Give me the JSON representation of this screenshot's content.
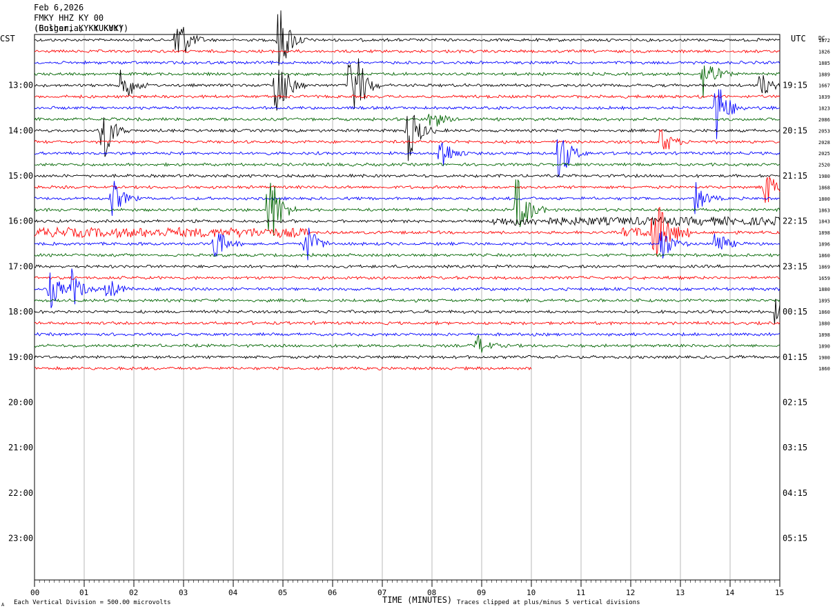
{
  "header": {
    "date": "Feb 6,2026",
    "station": "FMKY HHZ KY 00",
    "location_line_a": "(Bulgaria, KY KUKY)",
    "location_line_b": "(Goshen, KY KUKYY)"
  },
  "labels": {
    "left_tz": "CST",
    "right_tz": "UTC",
    "dc_header": "DC",
    "xlabel": "TIME (MINUTES)",
    "scale_note": "Each Vertical Division =  500.00 microvolts",
    "clip_note": "Traces clipped at plus/minus 5 vertical divisions",
    "corner_mark": "A"
  },
  "chart_data": {
    "type": "line",
    "title": "FMKY HHZ KY 00",
    "date": "Feb 6,2026",
    "xlabel": "TIME (MINUTES)",
    "x_ticks": [
      "00",
      "01",
      "02",
      "03",
      "04",
      "05",
      "06",
      "07",
      "08",
      "09",
      "10",
      "11",
      "12",
      "13",
      "14",
      "15"
    ],
    "xlim": [
      0,
      15
    ],
    "left_hour_labels": [
      "13:00",
      "14:00",
      "15:00",
      "16:00",
      "17:00",
      "18:00",
      "19:00",
      "20:00",
      "21:00",
      "22:00",
      "23:00"
    ],
    "right_hour_labels": [
      "19:15",
      "20:15",
      "21:15",
      "22:15",
      "23:15",
      "00:15",
      "01:15",
      "02:15",
      "03:15",
      "04:15",
      "05:15"
    ],
    "trace_colors": [
      "#000000",
      "#ff0000",
      "#0000ff",
      "#006400"
    ],
    "dc_offsets": [
      "1872",
      "1826",
      "1885",
      "1889",
      "1667",
      "1839",
      "1823",
      "2086",
      "2053",
      "2028",
      "2025",
      "2520",
      "1980",
      "1868",
      "1800",
      "1863",
      "1843",
      "1898",
      "1896",
      "1860",
      "1869",
      "1659",
      "1880",
      "1895",
      "1860",
      "1880",
      "1898",
      "1890",
      "1900",
      "1860"
    ],
    "trace_count": 30,
    "last_trace_end_minute": 10.0,
    "events": [
      {
        "trace": 0,
        "minute": 2.85,
        "amp": 1.6
      },
      {
        "trace": 0,
        "minute": 4.9,
        "amp": 2.0
      },
      {
        "trace": 3,
        "minute": 13.45,
        "amp": 1.2
      },
      {
        "trace": 4,
        "minute": 1.75,
        "amp": 1.0
      },
      {
        "trace": 4,
        "minute": 4.85,
        "amp": 2.0
      },
      {
        "trace": 4,
        "minute": 6.35,
        "amp": 3.2
      },
      {
        "trace": 4,
        "minute": 14.6,
        "amp": 0.6
      },
      {
        "trace": 6,
        "minute": 13.7,
        "amp": 1.8
      },
      {
        "trace": 7,
        "minute": 7.95,
        "amp": 0.6
      },
      {
        "trace": 8,
        "minute": 1.35,
        "amp": 1.6
      },
      {
        "trace": 8,
        "minute": 7.5,
        "amp": 1.6
      },
      {
        "trace": 9,
        "minute": 12.6,
        "amp": 0.7
      },
      {
        "trace": 10,
        "minute": 8.15,
        "amp": 1.0
      },
      {
        "trace": 10,
        "minute": 10.55,
        "amp": 1.4
      },
      {
        "trace": 13,
        "minute": 14.7,
        "amp": 0.9
      },
      {
        "trace": 14,
        "minute": 1.55,
        "amp": 0.9
      },
      {
        "trace": 14,
        "minute": 13.3,
        "amp": 0.7
      },
      {
        "trace": 15,
        "minute": 4.7,
        "amp": 2.5
      },
      {
        "trace": 15,
        "minute": 9.7,
        "amp": 1.8
      },
      {
        "trace": 17,
        "minute": 12.45,
        "amp": 2.0
      },
      {
        "trace": 18,
        "minute": 3.6,
        "amp": 1.0
      },
      {
        "trace": 18,
        "minute": 5.45,
        "amp": 1.0
      },
      {
        "trace": 18,
        "minute": 12.6,
        "amp": 0.9
      },
      {
        "trace": 18,
        "minute": 13.7,
        "amp": 0.7
      },
      {
        "trace": 22,
        "minute": 0.3,
        "amp": 0.9
      },
      {
        "trace": 22,
        "minute": 0.75,
        "amp": 0.8
      },
      {
        "trace": 22,
        "minute": 1.45,
        "amp": 0.6
      },
      {
        "trace": 24,
        "minute": 14.9,
        "amp": 0.5
      },
      {
        "trace": 27,
        "minute": 8.9,
        "amp": 0.5
      }
    ],
    "noise_bands": [
      {
        "trace": 16,
        "from": 9.2,
        "to": 15,
        "amp": 0.5
      },
      {
        "trace": 17,
        "from": 0,
        "to": 5.5,
        "amp": 0.6
      },
      {
        "trace": 17,
        "from": 11.8,
        "to": 13.2,
        "amp": 0.6
      }
    ]
  }
}
